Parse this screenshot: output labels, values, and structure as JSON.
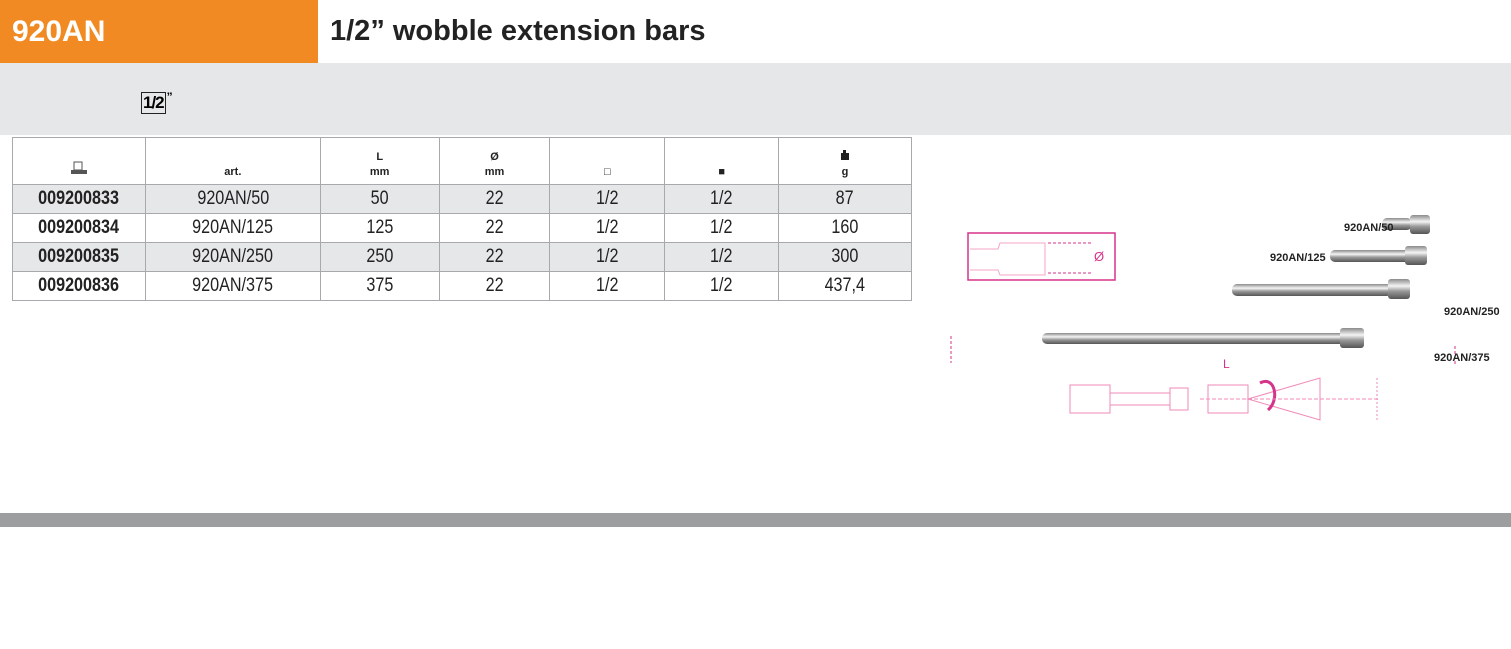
{
  "header": {
    "code": "920AN",
    "title": "1/2” wobble extension bars",
    "accent_color": "#f18a22"
  },
  "drive_badge": {
    "value": "1/2",
    "unit": "”"
  },
  "table": {
    "headers": [
      {
        "icon": "ean-code-icon",
        "label": "",
        "unit": ""
      },
      {
        "label": "art.",
        "unit": ""
      },
      {
        "label": "L",
        "unit": "mm"
      },
      {
        "label": "Ø",
        "unit": "mm"
      },
      {
        "icon": "square-drive-outline-icon",
        "label": "□",
        "unit": ""
      },
      {
        "icon": "square-drive-solid-icon",
        "label": "■",
        "unit": ""
      },
      {
        "icon": "weight-icon",
        "label": "",
        "unit": "g"
      }
    ],
    "rows": [
      [
        "009200833",
        "920AN/50",
        "50",
        "22",
        "1/2",
        "1/2",
        "87"
      ],
      [
        "009200834",
        "920AN/125",
        "125",
        "22",
        "1/2",
        "1/2",
        "160"
      ],
      [
        "009200835",
        "920AN/250",
        "250",
        "22",
        "1/2",
        "1/2",
        "300"
      ],
      [
        "009200836",
        "920AN/375",
        "375",
        "22",
        "1/2",
        "1/2",
        "437,4"
      ]
    ]
  },
  "illustration": {
    "labels": [
      "920AN/50",
      "920AN/125",
      "920AN/250",
      "920AN/375"
    ],
    "diameter_symbol": "Ø",
    "length_symbol": "L",
    "drawing_color": "#d6338a"
  }
}
